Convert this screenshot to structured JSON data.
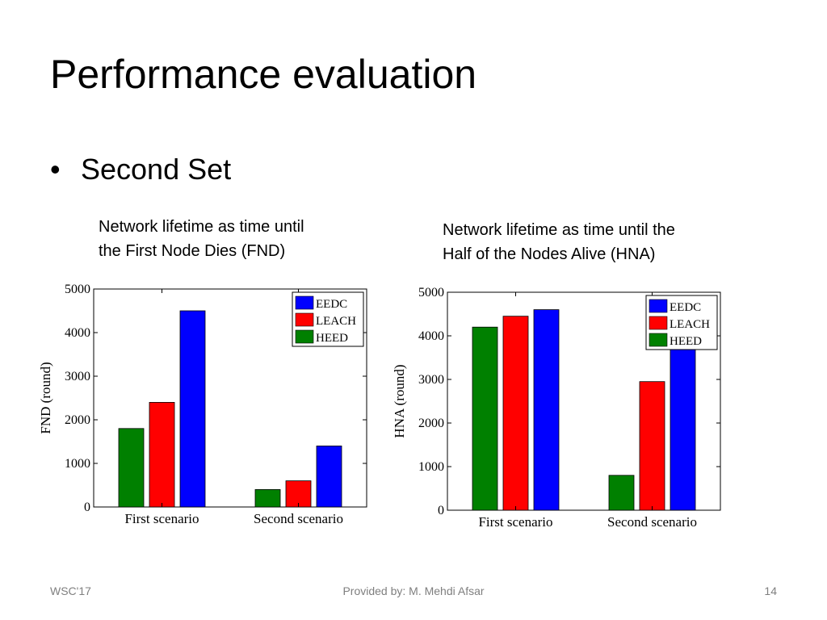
{
  "slide": {
    "title": "Performance evaluation",
    "bullet": "Second Set",
    "bullet_glyph": "•"
  },
  "captions": {
    "fnd": [
      "Network lifetime as time until",
      "the First Node Dies (FND)"
    ],
    "hna": [
      "Network lifetime as time until the",
      "Half of the Nodes Alive (HNA)"
    ]
  },
  "footer": {
    "left": "WSC'17",
    "center": "Provided by: M. Mehdi Afsar",
    "right": "14"
  },
  "chart_data": [
    {
      "type": "bar",
      "categories": [
        "First scenario",
        "Second scenario"
      ],
      "series": [
        {
          "name": "HEED",
          "values": [
            1800,
            400
          ],
          "color": "#008000"
        },
        {
          "name": "LEACH",
          "values": [
            2400,
            600
          ],
          "color": "#ff0000"
        },
        {
          "name": "EEDC",
          "values": [
            4500,
            1400
          ],
          "color": "#0000ff"
        }
      ],
      "legend_order": [
        "EEDC",
        "LEACH",
        "HEED"
      ],
      "ylabel": "FND (round)",
      "xlabel": "",
      "ylim": [
        0,
        5000
      ],
      "yticks": [
        0,
        1000,
        2000,
        3000,
        4000,
        5000
      ],
      "grid": false,
      "legend_position": "top-right"
    },
    {
      "type": "bar",
      "categories": [
        "First scenario",
        "Second scenario"
      ],
      "series": [
        {
          "name": "HEED",
          "values": [
            4200,
            800
          ],
          "color": "#008000"
        },
        {
          "name": "LEACH",
          "values": [
            4450,
            2950
          ],
          "color": "#ff0000"
        },
        {
          "name": "EEDC",
          "values": [
            4600,
            4550
          ],
          "color": "#0000ff"
        }
      ],
      "legend_order": [
        "EEDC",
        "LEACH",
        "HEED"
      ],
      "ylabel": "HNA (round)",
      "xlabel": "",
      "ylim": [
        0,
        5000
      ],
      "yticks": [
        0,
        1000,
        2000,
        3000,
        4000,
        5000
      ],
      "grid": false,
      "legend_position": "top-right"
    }
  ]
}
